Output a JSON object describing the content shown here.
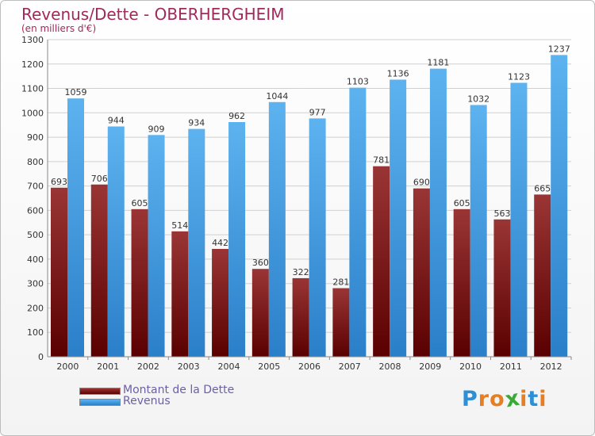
{
  "chart_data": {
    "type": "bar",
    "title": "Revenus/Dette - OBERHERGHEIM",
    "subtitle": "(en milliers d'€)",
    "xlabel": "",
    "ylabel": "",
    "ylim": [
      0,
      1300
    ],
    "yticks": [
      0,
      100,
      200,
      300,
      400,
      500,
      600,
      700,
      800,
      900,
      1000,
      1100,
      1200,
      1300
    ],
    "grid": true,
    "legend_position": "bottom-left",
    "categories": [
      "2000",
      "2001",
      "2002",
      "2003",
      "2004",
      "2005",
      "2006",
      "2007",
      "2008",
      "2009",
      "2010",
      "2011",
      "2012"
    ],
    "series": [
      {
        "name": "Montant de la Dette",
        "color": "#8b1a1a",
        "values": [
          693,
          706,
          605,
          514,
          442,
          360,
          322,
          281,
          781,
          690,
          605,
          563,
          665
        ]
      },
      {
        "name": "Revenus",
        "color": "#3d9be0",
        "values": [
          1059,
          944,
          909,
          934,
          962,
          1044,
          977,
          1103,
          1136,
          1181,
          1032,
          1123,
          1237
        ]
      }
    ]
  },
  "logo": {
    "text": "Proxiti",
    "letters": [
      "P",
      "r",
      "o",
      "x",
      "i",
      "t",
      "i"
    ],
    "colors": [
      "#2d8fd6",
      "#e67e22",
      "#e67e22",
      "#3aaa35",
      "#e67e22",
      "#2d8fd6",
      "#e67e22"
    ]
  }
}
